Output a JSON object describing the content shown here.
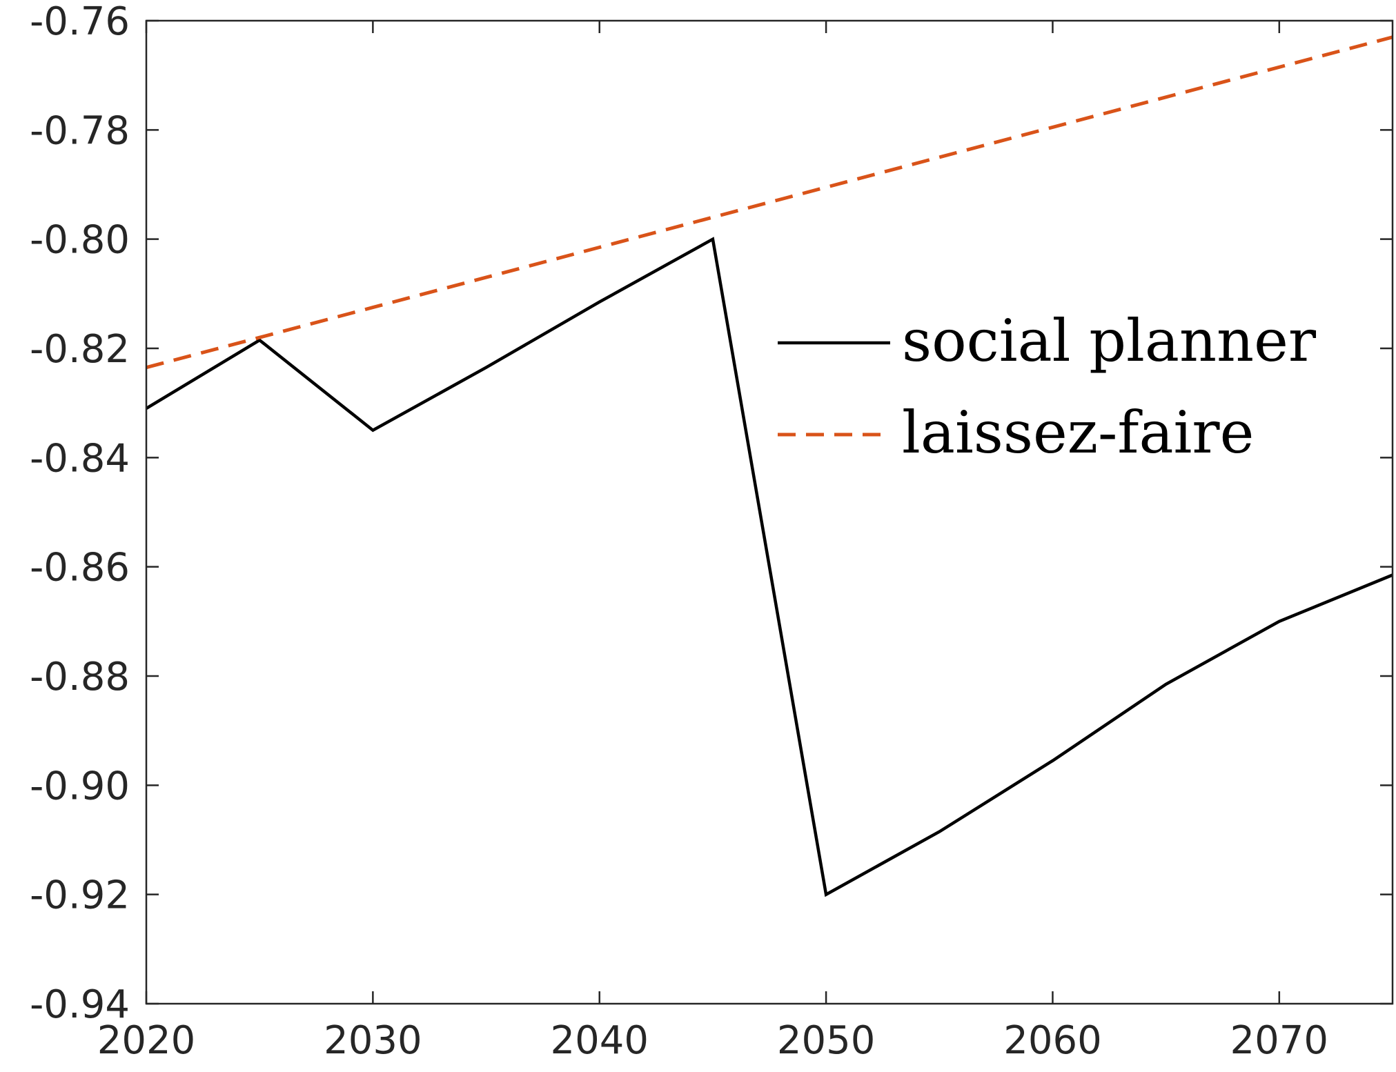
{
  "chart_data": {
    "type": "line",
    "title": "",
    "xlabel": "",
    "ylabel": "",
    "xlim": [
      2020,
      2075
    ],
    "ylim": [
      -0.94,
      -0.76
    ],
    "xticks": [
      2020,
      2030,
      2040,
      2050,
      2060,
      2070
    ],
    "yticks": [
      -0.94,
      -0.92,
      -0.9,
      -0.88,
      -0.86,
      -0.84,
      -0.82,
      -0.8,
      -0.78,
      -0.76
    ],
    "xtick_labels": [
      "2020",
      "2030",
      "2040",
      "2050",
      "2060",
      "2070"
    ],
    "ytick_labels": [
      "-0.94",
      "-0.92",
      "-0.90",
      "-0.88",
      "-0.86",
      "-0.84",
      "-0.82",
      "-0.80",
      "-0.78",
      "-0.76"
    ],
    "grid": false,
    "legend_position": "right",
    "series": [
      {
        "name": "social planner",
        "color": "#000000",
        "style": "solid",
        "x": [
          2020,
          2025,
          2030,
          2035,
          2040,
          2045,
          2050,
          2055,
          2060,
          2065,
          2070,
          2075
        ],
        "y": [
          -0.831,
          -0.8185,
          -0.835,
          -0.8235,
          -0.8115,
          -0.8,
          -0.92,
          -0.9085,
          -0.8955,
          -0.8815,
          -0.87,
          -0.8615
        ]
      },
      {
        "name": "laissez-faire",
        "color": "#D95319",
        "style": "dashed",
        "x": [
          2020,
          2025,
          2030,
          2035,
          2040,
          2045,
          2050,
          2055,
          2060,
          2065,
          2070,
          2075
        ],
        "y": [
          -0.8235,
          -0.818,
          -0.8125,
          -0.807,
          -0.8015,
          -0.796,
          -0.7905,
          -0.785,
          -0.7795,
          -0.774,
          -0.7685,
          -0.763
        ]
      }
    ]
  }
}
